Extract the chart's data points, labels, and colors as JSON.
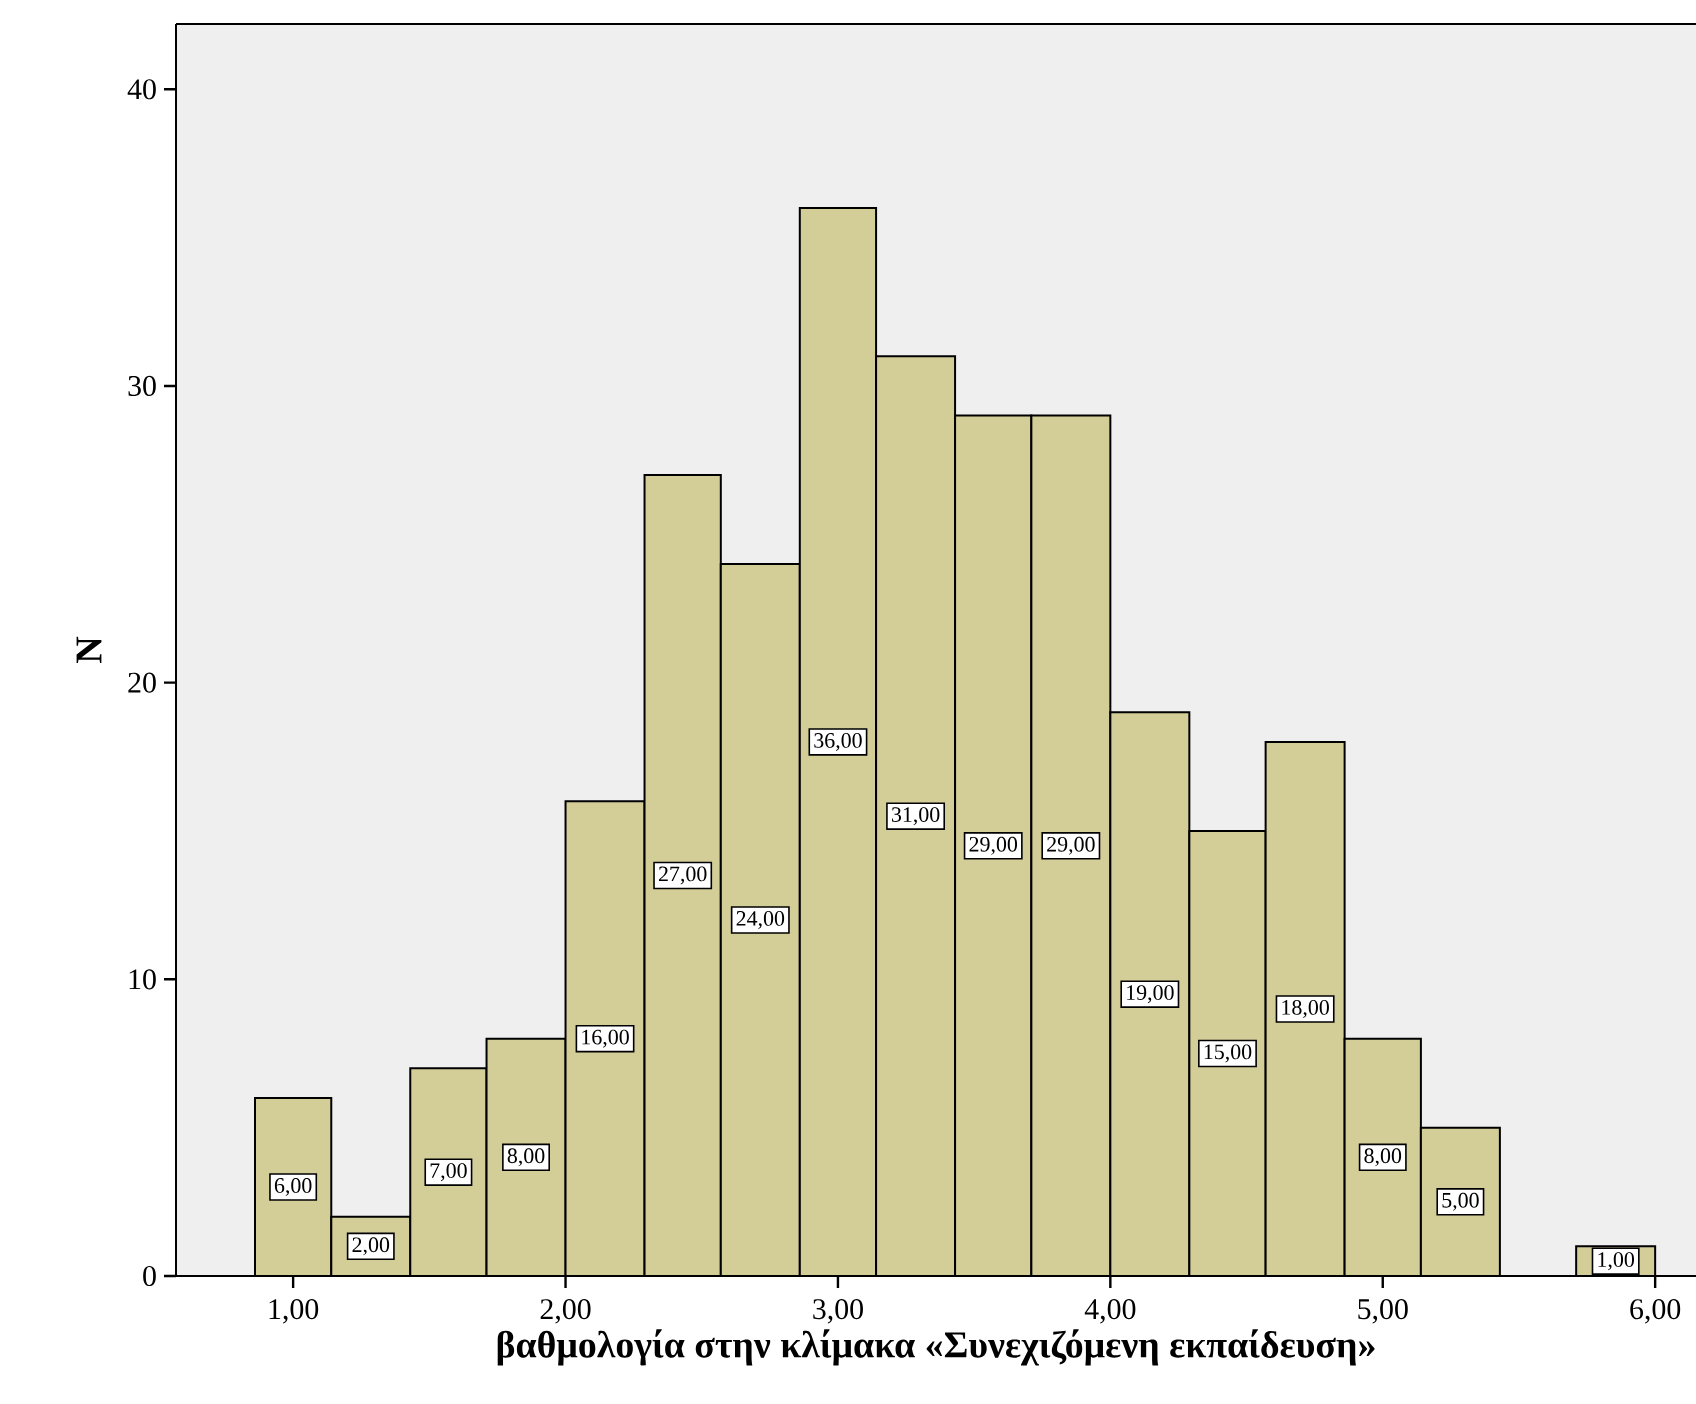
{
  "chart_data": {
    "type": "histogram",
    "xlabel": "βαθμολογία στην κλίμακα «Συνεχιζόμενη εκπαίδευση»",
    "ylabel": "N",
    "bins": [
      0.86,
      1.14,
      1.43,
      1.71,
      2.0,
      2.29,
      2.57,
      2.86,
      3.14,
      3.43,
      3.71,
      4.0,
      4.29,
      4.57,
      4.86,
      5.14,
      5.43,
      5.71,
      6.0
    ],
    "values": [
      6,
      2,
      7,
      8,
      16,
      27,
      24,
      36,
      31,
      29,
      29,
      19,
      15,
      18,
      8,
      5,
      0,
      1
    ],
    "value_labels": [
      "6,00",
      "2,00",
      "7,00",
      "8,00",
      "16,00",
      "27,00",
      "24,00",
      "36,00",
      "31,00",
      "29,00",
      "29,00",
      "19,00",
      "15,00",
      "18,00",
      "8,00",
      "5,00",
      null,
      "1,00"
    ],
    "color": "#d3cd98",
    "xlim": [
      0.57,
      6.15
    ],
    "ylim": [
      0,
      42.2
    ],
    "xticks": [
      {
        "value": 1,
        "label": "1,00"
      },
      {
        "value": 2,
        "label": "2,00"
      },
      {
        "value": 3,
        "label": "3,00"
      },
      {
        "value": 4,
        "label": "4,00"
      },
      {
        "value": 5,
        "label": "5,00"
      },
      {
        "value": 6,
        "label": "6,00"
      }
    ],
    "yticks": [
      0,
      10,
      20,
      30,
      40
    ]
  }
}
